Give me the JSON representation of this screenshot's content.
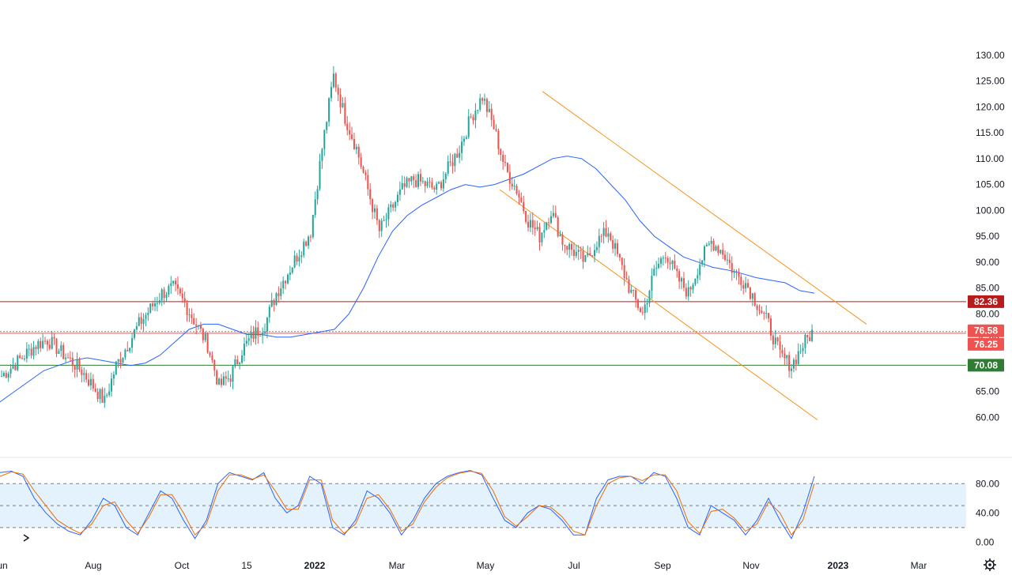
{
  "chart_data": [
    {
      "type": "candlestick",
      "title": "",
      "y_ticks": [
        "130.00",
        "125.00",
        "120.00",
        "115.00",
        "110.00",
        "105.00",
        "100.00",
        "95.00",
        "90.00",
        "85.00",
        "80.00",
        "75.00",
        "70.00",
        "65.00",
        "60.00"
      ],
      "ylim": [
        57,
        131.5
      ],
      "x_ticks": [
        "Jun",
        "Aug",
        "Oct",
        "15",
        "2022",
        "Mar",
        "May",
        "Jul",
        "Sep",
        "Nov",
        "2023",
        "Mar"
      ],
      "bold_x_ticks": [
        "2022",
        "2023"
      ],
      "up_color": "#26a69a",
      "down_color": "#ef5350",
      "ma_color": "#2962ff",
      "channel_color": "#f7931a",
      "ohlc_path_close": [
        68,
        70,
        72,
        74,
        75,
        73,
        71,
        69,
        66,
        63,
        70,
        74,
        78,
        81,
        84,
        85,
        82,
        78,
        74,
        66,
        68,
        73,
        76,
        78,
        84,
        88,
        92,
        96,
        112,
        126,
        118,
        112,
        104,
        96,
        100,
        104,
        106,
        105,
        104,
        108,
        112,
        118,
        122,
        116,
        108,
        104,
        98,
        95,
        100,
        94,
        92,
        90,
        94,
        96,
        90,
        84,
        80,
        88,
        92,
        87,
        84,
        90,
        94,
        92,
        88,
        86,
        82,
        78,
        72,
        70,
        74,
        77
      ],
      "ohlc_path_spacing_days": 7,
      "moving_average": [
        63,
        65,
        67,
        69,
        70,
        71,
        71.5,
        71,
        70.5,
        70,
        70.5,
        72,
        74.5,
        77,
        78,
        78,
        77,
        76,
        76,
        75.5,
        75.5,
        76,
        76.5,
        77,
        80,
        85,
        91,
        96,
        99,
        101,
        102.5,
        104,
        105,
        104.5,
        105,
        106,
        107,
        108.5,
        110,
        110.5,
        110,
        108,
        105,
        102,
        98,
        95,
        93,
        91,
        90,
        89,
        88.5,
        87.8,
        87,
        86.5,
        86,
        84.5,
        84
      ],
      "levels": [
        {
          "label": "82.36",
          "value": 82.36,
          "color": "#b71c1c",
          "style": "solid"
        },
        {
          "label": "76.58",
          "value": 76.58,
          "color": "#ef5350",
          "style": "dotted"
        },
        {
          "label": "76.25",
          "value": 76.25,
          "color": "#ef5350",
          "style": "solid"
        },
        {
          "label": "70.08",
          "value": 70.08,
          "color": "#2e7d32",
          "style": "solid"
        }
      ],
      "channel": {
        "upper_start_price": 123,
        "upper_end_price": 78,
        "lower_start_price": 104,
        "lower_end_price": 59.5
      }
    },
    {
      "type": "line",
      "title": "",
      "y_ticks": [
        "80.00",
        "40.00",
        "0.00"
      ],
      "ylim": [
        -6,
        104
      ],
      "band": [
        20,
        80
      ],
      "midline": 50,
      "band_color": "#e3f2fd",
      "series": [
        {
          "color": "#2962ff",
          "values": [
            95,
            97,
            90,
            60,
            40,
            25,
            15,
            10,
            30,
            60,
            50,
            20,
            10,
            40,
            70,
            60,
            30,
            5,
            30,
            80,
            95,
            90,
            85,
            95,
            60,
            40,
            50,
            90,
            80,
            20,
            10,
            30,
            70,
            60,
            40,
            10,
            30,
            60,
            80,
            90,
            95,
            98,
            92,
            60,
            30,
            20,
            40,
            50,
            45,
            30,
            10,
            10,
            60,
            85,
            90,
            90,
            80,
            95,
            90,
            60,
            20,
            10,
            50,
            40,
            30,
            10,
            30,
            60,
            30,
            5,
            40,
            90
          ]
        },
        {
          "color": "#ef6c00",
          "values": [
            90,
            96,
            93,
            70,
            50,
            30,
            20,
            12,
            25,
            50,
            55,
            30,
            12,
            35,
            65,
            65,
            40,
            10,
            25,
            70,
            92,
            92,
            86,
            92,
            70,
            45,
            45,
            85,
            85,
            30,
            12,
            25,
            60,
            65,
            45,
            15,
            25,
            55,
            75,
            88,
            94,
            97,
            94,
            70,
            35,
            22,
            35,
            50,
            48,
            35,
            15,
            10,
            50,
            80,
            88,
            90,
            84,
            92,
            92,
            70,
            28,
            12,
            42,
            45,
            33,
            15,
            25,
            55,
            40,
            10,
            30,
            80
          ]
        }
      ]
    }
  ],
  "toolbar": {
    "settings_icon": "gear-icon"
  }
}
